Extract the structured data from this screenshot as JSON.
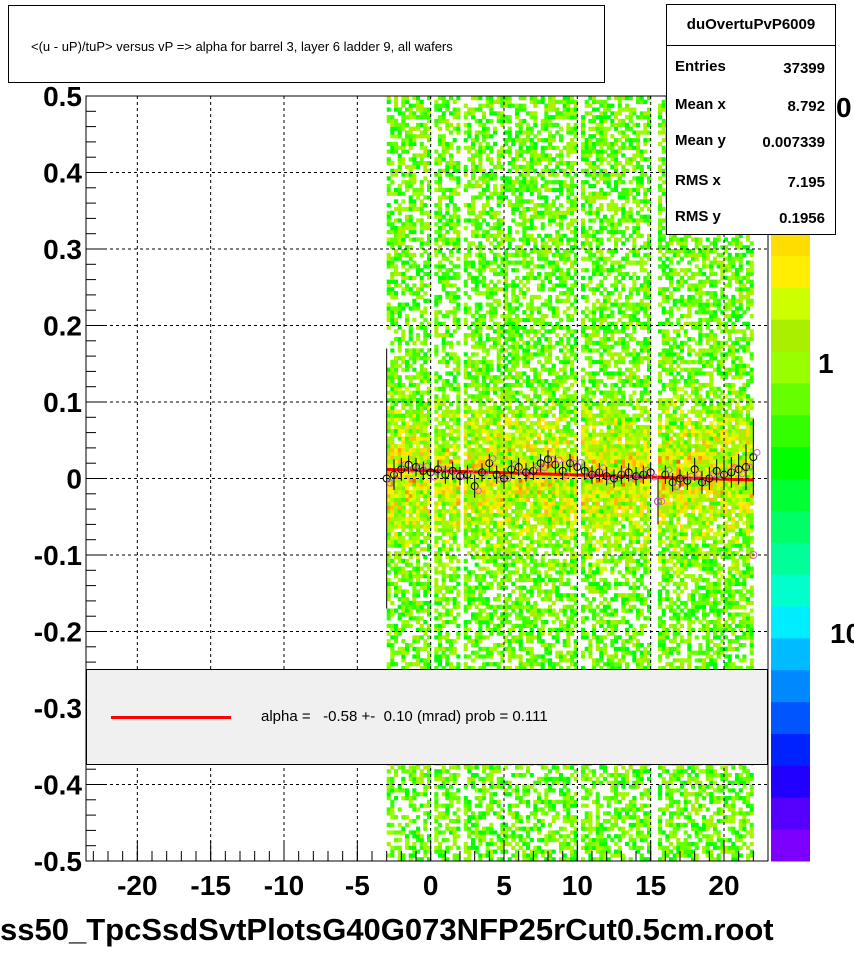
{
  "title": "<(u - uP)/tuP> versus   vP => alpha for barrel 3, layer 6 ladder 9, all wafers",
  "stats": {
    "name": "duOvertuPvP6009",
    "rows": [
      {
        "label": "Entries",
        "value": "37399"
      },
      {
        "label": "Mean x",
        "value": "8.792"
      },
      {
        "label": "Mean y",
        "value": "0.007339"
      },
      {
        "label": "RMS x",
        "value": "7.195"
      },
      {
        "label": "RMS y",
        "value": "0.1956"
      }
    ]
  },
  "legend": {
    "text": "alpha =   -0.58 +-  0.10 (mrad) prob = 0.111",
    "line_color": "#ff0000"
  },
  "footer": "ss50_TpcSsdSvtPlotsG40G073NFP25rCut0.5cm.root",
  "z_axis_labels": [
    "0",
    "1",
    "10"
  ],
  "chart_data": {
    "type": "heatmap",
    "title": "<(u - uP)/tuP> versus   vP => alpha for barrel 3, layer 6 ladder 9, all wafers",
    "xlabel": "",
    "ylabel": "",
    "xlim": [
      -23.5,
      23
    ],
    "ylim": [
      -0.5,
      0.5
    ],
    "x_ticks": [
      -20,
      -15,
      -10,
      -5,
      0,
      5,
      10,
      15,
      20
    ],
    "y_ticks": [
      0.5,
      0.4,
      0.3,
      0.2,
      0.1,
      0,
      -0.1,
      -0.2,
      -0.3,
      -0.4,
      -0.5
    ],
    "x_tick_labels": [
      "-20",
      "-15",
      "-10",
      "-5",
      "0",
      "5",
      "10",
      "15",
      "20"
    ],
    "y_tick_labels": [
      "0.5",
      "0.4",
      "0.3",
      "0.2",
      "0.1",
      "0",
      "-0.1",
      "-0.2",
      "-0.3",
      "-0.4",
      "-0.5"
    ],
    "grid": true,
    "log_z": true,
    "occupied_x_range": [
      -3,
      22
    ],
    "empty_x_bands": [
      [
        -0.2,
        0.2
      ],
      [
        1.8,
        2.2
      ],
      [
        9.8,
        10.2
      ],
      [
        15.0,
        15.3
      ]
    ],
    "palette": [
      "#7d00ff",
      "#5500ff",
      "#2200ff",
      "#0022ff",
      "#0055ff",
      "#0088ff",
      "#00bbff",
      "#00eeff",
      "#00ffcc",
      "#00ff99",
      "#00ff66",
      "#00ff33",
      "#00ff00",
      "#33ff00",
      "#66ff00",
      "#99ff00",
      "#aaee00",
      "#ccff00",
      "#ffee00",
      "#ffdd00",
      "#ffbb00",
      "#ff9900",
      "#ff6600",
      "#ff3300"
    ],
    "fit_line": {
      "x": [
        -3,
        22
      ],
      "y": [
        0.012,
        -0.002
      ],
      "color": "#ff0000"
    },
    "profile": {
      "x": [
        -3,
        -2.5,
        -2,
        -1.5,
        -1,
        -0.5,
        0,
        0.5,
        1,
        1.5,
        2,
        2.5,
        3,
        3.5,
        4,
        4.5,
        5,
        5.5,
        6,
        6.5,
        7,
        7.5,
        8,
        8.5,
        9,
        9.5,
        10,
        10.5,
        11,
        11.5,
        12,
        12.5,
        13,
        13.5,
        14,
        14.5,
        15,
        15.5,
        16,
        16.5,
        17,
        17.5,
        18,
        18.5,
        19,
        19.5,
        20,
        20.5,
        21,
        21.5,
        22
      ],
      "y": [
        0.0,
        0.005,
        0.012,
        0.018,
        0.015,
        0.01,
        0.008,
        0.012,
        0.005,
        0.01,
        0.003,
        0.005,
        -0.01,
        0.008,
        0.02,
        0.005,
        0.0,
        0.012,
        0.015,
        0.008,
        0.01,
        0.02,
        0.025,
        0.018,
        0.01,
        0.02,
        0.015,
        0.01,
        0.005,
        0.008,
        0.003,
        0.0,
        0.005,
        0.008,
        0.003,
        0.005,
        0.008,
        -0.03,
        0.005,
        -0.005,
        0.0,
        -0.003,
        0.012,
        -0.005,
        0.0,
        0.01,
        0.005,
        0.008,
        0.012,
        0.015,
        0.028
      ],
      "err": [
        0.17,
        0.02,
        0.015,
        0.012,
        0.012,
        0.012,
        0.012,
        0.012,
        0.012,
        0.012,
        0.012,
        0.012,
        0.015,
        0.012,
        0.012,
        0.012,
        0.012,
        0.012,
        0.012,
        0.012,
        0.012,
        0.012,
        0.012,
        0.012,
        0.012,
        0.012,
        0.012,
        0.012,
        0.012,
        0.012,
        0.012,
        0.012,
        0.012,
        0.012,
        0.012,
        0.012,
        0.012,
        0.03,
        0.012,
        0.012,
        0.012,
        0.012,
        0.015,
        0.015,
        0.015,
        0.015,
        0.02,
        0.02,
        0.02,
        0.03,
        0.05
      ]
    },
    "outlier_points": {
      "x": [
        22,
        15.5
      ],
      "y": [
        -0.1,
        -0.03
      ]
    }
  }
}
